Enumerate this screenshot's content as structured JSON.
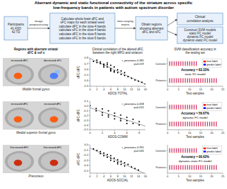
{
  "chart_data": [
    {
      "type": "flowchart",
      "title": "Aberrant dynamic and static functional connectivity of the striatum across specific",
      "subtitle": "low-frequency bands in patients with autism spectrum disorder",
      "boxes": [
        "Participants\n41 ASD\n42 TD",
        "Calculate whole brain dFC and\nsFC maps for each striatal seed\ncalculate dFC in the slow-4 bands\ncalculate sFC in the slow-4 bands\ncalculate dFC in the slow-5 bands\ncalculate sFC in the slow-5 bands",
        "Obtain regions\nshowing aberrant\ndFC and sFC",
        "Clinical\ncorrelation analysis",
        "Construct SVM models\nstatic FC model\ndynamic FC model\ndynamic-static FC model"
      ],
      "annotations": [
        "image\npreprocessing",
        "time-varying\nmatrix"
      ]
    },
    {
      "type": "image",
      "title": "Regions with aberrant striatal\ndFC & sof s",
      "panels": [
        {
          "label": "increased dFC",
          "colors": [
            "#ff5500"
          ]
        },
        {
          "label": "decreased sFC",
          "colors": [
            "#4477ff",
            "#88bbff"
          ]
        }
      ],
      "annotations": [
        "Middle frontal gyrus"
      ]
    },
    {
      "type": "image",
      "panels": [
        {
          "label": "increased dFC",
          "colors": [
            "#ff5500"
          ]
        },
        {
          "label": "increased dFC",
          "colors": [
            "#ff5500"
          ]
        }
      ],
      "annotations": [
        "Medial superior frontal gyrus"
      ]
    },
    {
      "type": "image",
      "panels": [
        {
          "label": "Decreased dFC",
          "colors": [
            "#cc2200"
          ]
        },
        {
          "label": "Decreased dFC",
          "colors": [
            "#cc2200"
          ]
        }
      ],
      "annotations": [
        "Precuneus"
      ]
    },
    {
      "type": "scatter",
      "title": "Clinical correlation of the altered dFC\nbetween the right MFG and striatum",
      "x_label": "ADOS-TOTAL",
      "y_label": "dFC-dFC",
      "x": [
        1,
        2,
        2,
        3,
        3,
        4,
        4,
        4,
        5,
        5,
        5,
        6,
        6,
        6,
        6,
        7,
        7,
        7,
        8,
        8,
        9,
        9,
        10,
        10,
        11,
        12,
        13,
        14,
        15,
        16
      ],
      "values": [
        0.74,
        0.76,
        0.72,
        0.73,
        0.7,
        0.69,
        0.67,
        0.64,
        0.71,
        0.68,
        0.64,
        0.67,
        0.61,
        0.59,
        0.57,
        0.64,
        0.57,
        0.55,
        0.59,
        0.54,
        0.57,
        0.51,
        0.54,
        0.49,
        0.47,
        0.44,
        0.41,
        0.39,
        0.37,
        0.34
      ],
      "color": "#000000",
      "marker": "square",
      "regression": {
        "slope": -0.02854,
        "intercept": 0.79206,
        "color": "#777777"
      },
      "xlim": [
        0,
        16
      ],
      "ylim": [
        0.3,
        0.8
      ],
      "xticks": [
        0,
        2,
        4,
        6,
        8,
        10,
        12,
        14,
        16
      ],
      "yticks": [
        0.3,
        0.4,
        0.5,
        0.6,
        0.7,
        0.8
      ],
      "annotations": [
        "r_pearson=-0.381\np=0.019"
      ]
    },
    {
      "type": "scatter",
      "x_label": "ADOS-COMM",
      "y_label": "dFC-dFC",
      "x": [
        0,
        1,
        1,
        2,
        2,
        2,
        3,
        3,
        3,
        4,
        4,
        4,
        5,
        5,
        5,
        6,
        6,
        6,
        7,
        7,
        8,
        8
      ],
      "values": [
        0.01,
        -0.05,
        -0.1,
        -0.06,
        -0.14,
        -0.19,
        -0.1,
        -0.19,
        -0.23,
        -0.15,
        -0.21,
        -0.27,
        -0.19,
        -0.27,
        -0.31,
        -0.24,
        -0.31,
        -0.37,
        -0.28,
        -0.37,
        -0.33,
        -0.4
      ],
      "color": "#000000",
      "marker": "square",
      "regression": {
        "slope": -0.043315,
        "intercept": -0.034775,
        "color": "#777777"
      },
      "xlim": [
        0,
        9
      ],
      "ylim": [
        -0.5,
        0.1
      ],
      "xticks": [
        0,
        2,
        4,
        6,
        8
      ],
      "yticks": [
        -0.5,
        -0.4,
        -0.3,
        -0.2,
        -0.1,
        {
          "value": 0,
          "label": "0.0"
        },
        0.1
      ],
      "annotations": [
        "r_pearson=-0.458\np=0.015"
      ]
    },
    {
      "type": "scatter",
      "x_label": "ADOS-SOCIAL",
      "y_label": "sFC-dFC",
      "x": [
        1,
        2,
        3,
        3,
        4,
        4,
        5,
        5,
        6,
        6,
        6,
        7,
        7,
        8,
        8,
        8,
        9,
        9,
        10,
        10,
        11,
        12,
        13,
        14
      ],
      "values": [
        -0.08,
        -0.11,
        -0.13,
        -0.17,
        -0.16,
        -0.21,
        -0.19,
        -0.24,
        -0.21,
        -0.26,
        -0.3,
        -0.26,
        -0.32,
        -0.29,
        -0.34,
        -0.37,
        -0.32,
        -0.38,
        -0.35,
        -0.41,
        -0.38,
        -0.43,
        -0.46,
        -0.49
      ],
      "color": "#000000",
      "marker": "square",
      "regression": {
        "slope": -0.031496,
        "intercept": -0.061426,
        "color": "#777777"
      },
      "xlim": [
        0,
        16
      ],
      "ylim": [
        -0.55,
        0
      ],
      "xticks": [
        0,
        2,
        4,
        6,
        8,
        10,
        12,
        14,
        16
      ],
      "yticks": [
        -0.5,
        -0.4,
        -0.3,
        -0.2,
        -0.1,
        {
          "value": 0,
          "label": "0.0"
        }
      ],
      "annotations": [
        "r_pearson=-0.391\np=0.045"
      ]
    },
    {
      "type": "strip",
      "title": "SVM classification accuracy in\nthe testing set",
      "x_label": "Test samples",
      "categories": [
        "Patients",
        "Controls"
      ],
      "series": [
        {
          "name": "true label",
          "color": "red",
          "x": [
            [
              1,
              2,
              3,
              4,
              5,
              6,
              7,
              8,
              9,
              10,
              11,
              12,
              13,
              14,
              15,
              16,
              17,
              18,
              19,
              20,
              21,
              22
            ],
            [
              1,
              2,
              3,
              4,
              5,
              6,
              7,
              8,
              9,
              10,
              11,
              12,
              13
            ]
          ]
        },
        {
          "name": "predict label",
          "color": "blue",
          "line_style": "dotted",
          "x": [
            [
              1,
              2,
              3,
              4,
              5,
              6,
              7,
              8,
              9,
              10,
              11,
              12,
              13,
              14,
              15,
              16,
              17,
              18,
              19,
              20,
              21,
              22
            ],
            [
              1,
              2,
              3,
              4,
              5,
              6,
              7,
              8,
              9,
              10,
              11,
              12,
              13
            ]
          ]
        }
      ],
      "xlim": [
        0,
        25
      ],
      "xticks": [
        0,
        5,
        10,
        15,
        20,
        25
      ],
      "legend": "upper right",
      "annotations": [
        "Accuracy = 83.33%",
        "static FC-model"
      ]
    },
    {
      "type": "strip",
      "x_label": "Test samples",
      "categories": [
        "Patients",
        "Controls"
      ],
      "series": [
        {
          "name": "true label",
          "color": "red",
          "x": [
            [
              1,
              2,
              3,
              4,
              5,
              6,
              7,
              8,
              9,
              10,
              11,
              12,
              13,
              14,
              15,
              16,
              17,
              18,
              19,
              20,
              21,
              22
            ],
            [
              1,
              2,
              3,
              4,
              5,
              6,
              7,
              8,
              9,
              10,
              11,
              12,
              13
            ]
          ]
        },
        {
          "name": "predict label",
          "color": "blue",
          "line_style": "dotted",
          "x": [
            [
              1,
              2,
              3,
              4,
              5,
              6,
              7,
              8,
              9,
              10,
              11,
              12,
              13,
              14,
              15,
              16,
              17,
              18,
              19,
              20,
              21,
              22
            ],
            [
              1,
              2,
              3,
              4,
              5,
              6,
              7,
              8,
              9,
              10,
              11,
              12,
              13
            ]
          ]
        }
      ],
      "xlim": [
        0,
        25
      ],
      "xticks": [
        0,
        5,
        10,
        15,
        20,
        25
      ],
      "legend": "upper right",
      "annotations": [
        "Accuracy = 56.67%",
        "dynamic FC model"
      ]
    },
    {
      "type": "strip",
      "x_label": "Test samples",
      "categories": [
        "Patients",
        "Controls"
      ],
      "series": [
        {
          "name": "true label",
          "color": "red",
          "x": [
            [
              1,
              2,
              3,
              4,
              5,
              6,
              7,
              8,
              9,
              10,
              11,
              12,
              13,
              14,
              15,
              16,
              17,
              18,
              19,
              20,
              21,
              22
            ],
            [
              1,
              2,
              3,
              4,
              5,
              6,
              7,
              8,
              9,
              10,
              11,
              12,
              13
            ]
          ]
        },
        {
          "name": "predict label",
          "color": "blue",
          "line_style": "dotted",
          "x": [
            [
              1,
              2,
              3,
              4,
              5,
              6,
              7,
              8,
              9,
              10,
              11,
              12,
              13,
              14,
              15,
              16,
              17,
              18,
              19,
              20,
              21,
              22
            ],
            [
              1,
              2,
              3,
              4,
              5,
              6,
              7,
              8,
              9,
              10,
              11,
              12,
              13
            ]
          ]
        }
      ],
      "xlim": [
        0,
        25
      ],
      "xticks": [
        0,
        5,
        10,
        15,
        20,
        25
      ],
      "legend": "upper right",
      "annotations": [
        "Accuracy = 90.63%",
        "dynamic-static FC model"
      ]
    }
  ]
}
